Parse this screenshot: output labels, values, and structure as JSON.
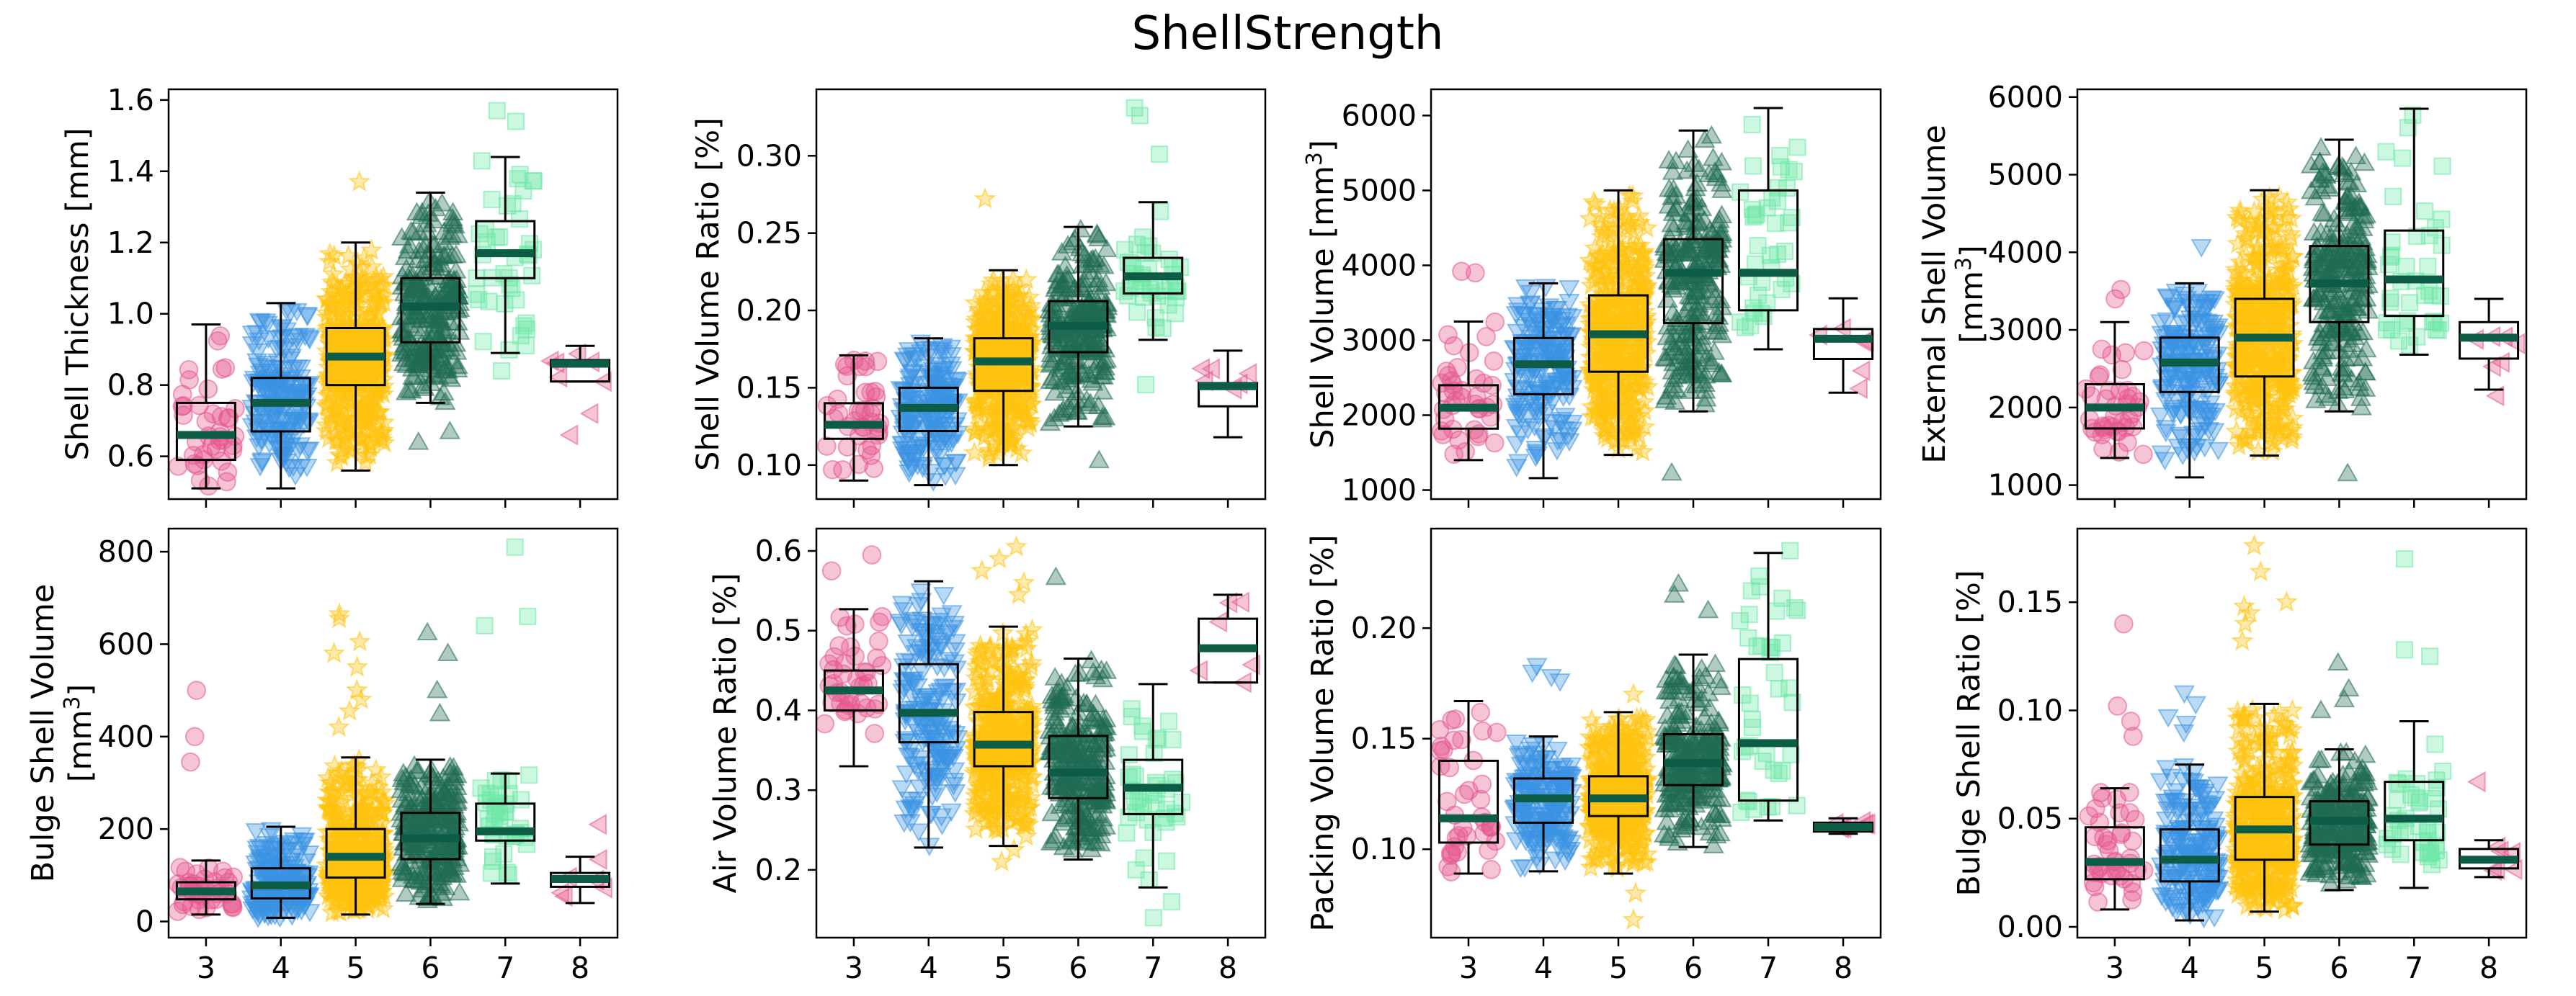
{
  "title": "ShellStrength",
  "categories": [
    "3",
    "4",
    "5",
    "6",
    "7",
    "8"
  ],
  "series_style": {
    "3": {
      "color": "#e6578c",
      "marker": "circle"
    },
    "4": {
      "color": "#3a93e3",
      "marker": "triangle-down"
    },
    "5": {
      "color": "#ffc20e",
      "marker": "star"
    },
    "6": {
      "color": "#1f6b53",
      "marker": "triangle-up"
    },
    "7": {
      "color": "#6ee7a6",
      "marker": "square"
    },
    "8": {
      "color": "#e6578c",
      "marker": "triangle-left"
    }
  },
  "median_color": "#0d5c45",
  "chart_data": [
    {
      "type": "box",
      "ylabel": "Shell Thickness [mm]",
      "ylim": [
        0.48,
        1.63
      ],
      "yticks": [
        "0.6",
        "0.8",
        "1.0",
        "1.2",
        "1.4",
        "1.6"
      ],
      "ytick_values": [
        0.6,
        0.8,
        1.0,
        1.2,
        1.4,
        1.6
      ],
      "boxes": [
        {
          "category": "3",
          "whislo": 0.51,
          "q1": 0.59,
          "med": 0.66,
          "q3": 0.75,
          "whishi": 0.97,
          "n": 40
        },
        {
          "category": "4",
          "whislo": 0.51,
          "q1": 0.67,
          "med": 0.75,
          "q3": 0.82,
          "whishi": 1.03,
          "n": 180
        },
        {
          "category": "5",
          "whislo": 0.56,
          "q1": 0.8,
          "med": 0.88,
          "q3": 0.96,
          "whishi": 1.2,
          "n": 420
        },
        {
          "category": "6",
          "whislo": 0.75,
          "q1": 0.92,
          "med": 1.02,
          "q3": 1.1,
          "whishi": 1.34,
          "n": 250
        },
        {
          "category": "7",
          "whislo": 0.89,
          "q1": 1.1,
          "med": 1.17,
          "q3": 1.26,
          "whishi": 1.44,
          "n": 40
        },
        {
          "category": "8",
          "whislo": 0.81,
          "q1": 0.81,
          "med": 0.86,
          "q3": 0.87,
          "whishi": 0.91,
          "n": 6
        }
      ],
      "outliers": [
        {
          "category": "5",
          "values": [
            1.37
          ]
        },
        {
          "category": "6",
          "values": [
            0.64,
            0.67
          ]
        },
        {
          "category": "7",
          "values": [
            1.54,
            1.57,
            0.84
          ]
        },
        {
          "category": "8",
          "values": [
            0.72,
            0.66
          ]
        }
      ]
    },
    {
      "type": "box",
      "ylabel": "Shell Volume Ratio [%]",
      "ylim": [
        0.078,
        0.343
      ],
      "yticks": [
        "0.10",
        "0.15",
        "0.20",
        "0.25",
        "0.30"
      ],
      "ytick_values": [
        0.1,
        0.15,
        0.2,
        0.25,
        0.3
      ],
      "boxes": [
        {
          "category": "3",
          "whislo": 0.09,
          "q1": 0.117,
          "med": 0.126,
          "q3": 0.14,
          "whishi": 0.171,
          "n": 40
        },
        {
          "category": "4",
          "whislo": 0.087,
          "q1": 0.122,
          "med": 0.137,
          "q3": 0.15,
          "whishi": 0.182,
          "n": 180
        },
        {
          "category": "5",
          "whislo": 0.1,
          "q1": 0.148,
          "med": 0.167,
          "q3": 0.182,
          "whishi": 0.226,
          "n": 420
        },
        {
          "category": "6",
          "whislo": 0.125,
          "q1": 0.173,
          "med": 0.19,
          "q3": 0.206,
          "whishi": 0.254,
          "n": 250
        },
        {
          "category": "7",
          "whislo": 0.181,
          "q1": 0.211,
          "med": 0.222,
          "q3": 0.234,
          "whishi": 0.27,
          "n": 40
        },
        {
          "category": "8",
          "whislo": 0.118,
          "q1": 0.138,
          "med": 0.151,
          "q3": 0.153,
          "whishi": 0.174,
          "n": 6
        }
      ],
      "outliers": [
        {
          "category": "5",
          "values": [
            0.272
          ]
        },
        {
          "category": "6",
          "values": [
            0.103
          ]
        },
        {
          "category": "7",
          "values": [
            0.326,
            0.331,
            0.301,
            0.152
          ]
        },
        {
          "category": "8",
          "values": []
        }
      ]
    },
    {
      "type": "box",
      "ylabel": "Shell Volume [mm³]",
      "ylabel_base": "Shell Volume [mm",
      "ylabel_sup": "3",
      "ylabel_end": "]",
      "ylim": [
        880,
        6350
      ],
      "yticks": [
        "1000",
        "2000",
        "3000",
        "4000",
        "5000",
        "6000"
      ],
      "ytick_values": [
        1000,
        2000,
        3000,
        4000,
        5000,
        6000
      ],
      "boxes": [
        {
          "category": "3",
          "whislo": 1400,
          "q1": 1820,
          "med": 2100,
          "q3": 2400,
          "whishi": 3250,
          "n": 40
        },
        {
          "category": "4",
          "whislo": 1160,
          "q1": 2280,
          "med": 2680,
          "q3": 3030,
          "whishi": 3760,
          "n": 180
        },
        {
          "category": "5",
          "whislo": 1470,
          "q1": 2580,
          "med": 3080,
          "q3": 3600,
          "whishi": 5000,
          "n": 420
        },
        {
          "category": "6",
          "whislo": 2050,
          "q1": 3230,
          "med": 3900,
          "q3": 4350,
          "whishi": 5800,
          "n": 250
        },
        {
          "category": "7",
          "whislo": 2880,
          "q1": 3400,
          "med": 3900,
          "q3": 5000,
          "whishi": 6100,
          "n": 40
        },
        {
          "category": "8",
          "whislo": 2300,
          "q1": 2750,
          "med": 3020,
          "q3": 3150,
          "whishi": 3560,
          "n": 6
        }
      ],
      "outliers": [
        {
          "category": "3",
          "values": [
            3920,
            3900
          ]
        },
        {
          "category": "6",
          "values": [
            1230
          ]
        },
        {
          "category": "7",
          "values": []
        },
        {
          "category": "8",
          "values": []
        }
      ]
    },
    {
      "type": "box",
      "ylabel": "External Shell Volume [mm³]",
      "ylabel_line1": "External Shell Volume",
      "ylabel_line2_base": "[mm",
      "ylabel_line2_sup": "3",
      "ylabel_line2_end": "]",
      "ylim": [
        820,
        6100
      ],
      "yticks": [
        "1000",
        "2000",
        "3000",
        "4000",
        "5000",
        "6000"
      ],
      "ytick_values": [
        1000,
        2000,
        3000,
        4000,
        5000,
        6000
      ],
      "boxes": [
        {
          "category": "3",
          "whislo": 1350,
          "q1": 1730,
          "med": 2000,
          "q3": 2300,
          "whishi": 3100,
          "n": 40
        },
        {
          "category": "4",
          "whislo": 1100,
          "q1": 2200,
          "med": 2580,
          "q3": 2900,
          "whishi": 3600,
          "n": 180
        },
        {
          "category": "5",
          "whislo": 1380,
          "q1": 2400,
          "med": 2900,
          "q3": 3400,
          "whishi": 4800,
          "n": 420
        },
        {
          "category": "6",
          "whislo": 1950,
          "q1": 3100,
          "med": 3600,
          "q3": 4080,
          "whishi": 5450,
          "n": 250
        },
        {
          "category": "7",
          "whislo": 2680,
          "q1": 3180,
          "med": 3650,
          "q3": 4280,
          "whishi": 5850,
          "n": 40
        },
        {
          "category": "8",
          "whislo": 2230,
          "q1": 2630,
          "med": 2900,
          "q3": 3100,
          "whishi": 3400,
          "n": 6
        }
      ],
      "outliers": [
        {
          "category": "3",
          "values": [
            3520,
            3400
          ]
        },
        {
          "category": "4",
          "values": [
            4070
          ]
        },
        {
          "category": "6",
          "values": [
            1150
          ]
        },
        {
          "category": "8",
          "values": [
            2150
          ]
        }
      ]
    },
    {
      "type": "box",
      "ylabel": "Bulge Shell Volume [mm³]",
      "ylabel_line1": "Bulge Shell Volume",
      "ylabel_line2_base": "[mm",
      "ylabel_line2_sup": "3",
      "ylabel_line2_end": "]",
      "ylim": [
        -35,
        850
      ],
      "yticks": [
        "0",
        "200",
        "400",
        "600",
        "800"
      ],
      "ytick_values": [
        0,
        200,
        400,
        600,
        800
      ],
      "boxes": [
        {
          "category": "3",
          "whislo": 15,
          "q1": 48,
          "med": 65,
          "q3": 85,
          "whishi": 132,
          "n": 40
        },
        {
          "category": "4",
          "whislo": 8,
          "q1": 50,
          "med": 78,
          "q3": 115,
          "whishi": 205,
          "n": 180
        },
        {
          "category": "5",
          "whislo": 15,
          "q1": 95,
          "med": 140,
          "q3": 200,
          "whishi": 355,
          "n": 420
        },
        {
          "category": "6",
          "whislo": 38,
          "q1": 135,
          "med": 180,
          "q3": 235,
          "whishi": 350,
          "n": 250
        },
        {
          "category": "7",
          "whislo": 82,
          "q1": 175,
          "med": 195,
          "q3": 255,
          "whishi": 320,
          "n": 40
        },
        {
          "category": "8",
          "whislo": 40,
          "q1": 75,
          "med": 92,
          "q3": 105,
          "whishi": 140,
          "n": 6
        }
      ],
      "outliers": [
        {
          "category": "3",
          "values": [
            500,
            400,
            345
          ]
        },
        {
          "category": "5",
          "values": [
            665,
            655,
            605,
            580,
            550,
            500,
            480,
            455,
            420
          ]
        },
        {
          "category": "6",
          "values": [
            625,
            580,
            500,
            450
          ]
        },
        {
          "category": "7",
          "values": [
            810,
            660,
            640
          ]
        },
        {
          "category": "8",
          "values": [
            210
          ]
        }
      ]
    },
    {
      "type": "box",
      "ylabel": "Air Volume Ratio [%]",
      "ylim": [
        0.115,
        0.628
      ],
      "yticks": [
        "0.2",
        "0.3",
        "0.4",
        "0.5",
        "0.6"
      ],
      "ytick_values": [
        0.2,
        0.3,
        0.4,
        0.5,
        0.6
      ],
      "boxes": [
        {
          "category": "3",
          "whislo": 0.33,
          "q1": 0.4,
          "med": 0.425,
          "q3": 0.45,
          "whishi": 0.527,
          "n": 40
        },
        {
          "category": "4",
          "whislo": 0.228,
          "q1": 0.36,
          "med": 0.397,
          "q3": 0.458,
          "whishi": 0.562,
          "n": 180
        },
        {
          "category": "5",
          "whislo": 0.23,
          "q1": 0.33,
          "med": 0.357,
          "q3": 0.398,
          "whishi": 0.505,
          "n": 420
        },
        {
          "category": "6",
          "whislo": 0.213,
          "q1": 0.29,
          "med": 0.322,
          "q3": 0.368,
          "whishi": 0.465,
          "n": 250
        },
        {
          "category": "7",
          "whislo": 0.178,
          "q1": 0.27,
          "med": 0.303,
          "q3": 0.338,
          "whishi": 0.433,
          "n": 40
        },
        {
          "category": "8",
          "whislo": 0.435,
          "q1": 0.435,
          "med": 0.478,
          "q3": 0.515,
          "whishi": 0.545,
          "n": 6
        }
      ],
      "outliers": [
        {
          "category": "3",
          "values": [
            0.595,
            0.575
          ]
        },
        {
          "category": "5",
          "values": [
            0.605,
            0.59,
            0.575,
            0.56,
            0.545,
            0.21,
            0.225
          ]
        },
        {
          "category": "6",
          "values": [
            0.567
          ]
        },
        {
          "category": "7",
          "values": [
            0.16,
            0.14,
            0.2
          ]
        }
      ]
    },
    {
      "type": "box",
      "ylabel": "Packing Volume Ratio [%]",
      "ylim": [
        0.06,
        0.245
      ],
      "yticks": [
        "0.10",
        "0.15",
        "0.20"
      ],
      "ytick_values": [
        0.1,
        0.15,
        0.2
      ],
      "boxes": [
        {
          "category": "3",
          "whislo": 0.089,
          "q1": 0.103,
          "med": 0.114,
          "q3": 0.14,
          "whishi": 0.167,
          "n": 40
        },
        {
          "category": "4",
          "whislo": 0.09,
          "q1": 0.112,
          "med": 0.123,
          "q3": 0.132,
          "whishi": 0.151,
          "n": 180
        },
        {
          "category": "5",
          "whislo": 0.089,
          "q1": 0.115,
          "med": 0.123,
          "q3": 0.133,
          "whishi": 0.162,
          "n": 420
        },
        {
          "category": "6",
          "whislo": 0.101,
          "q1": 0.129,
          "med": 0.139,
          "q3": 0.152,
          "whishi": 0.188,
          "n": 250
        },
        {
          "category": "7",
          "whislo": 0.113,
          "q1": 0.122,
          "med": 0.148,
          "q3": 0.186,
          "whishi": 0.234,
          "n": 40
        },
        {
          "category": "8",
          "whislo": 0.107,
          "q1": 0.108,
          "med": 0.11,
          "q3": 0.112,
          "whishi": 0.114,
          "n": 6
        }
      ],
      "outliers": [
        {
          "category": "4",
          "values": [
            0.183,
            0.18,
            0.178,
            0.176
          ]
        },
        {
          "category": "5",
          "values": [
            0.068,
            0.08,
            0.17
          ]
        },
        {
          "category": "6",
          "values": [
            0.22,
            0.215,
            0.208
          ]
        },
        {
          "category": "7",
          "values": [
            0.235
          ]
        }
      ]
    },
    {
      "type": "box",
      "ylabel": "Bulge Shell Ratio [%]",
      "ylim": [
        -0.005,
        0.184
      ],
      "yticks": [
        "0.00",
        "0.05",
        "0.10",
        "0.15"
      ],
      "ytick_values": [
        0.0,
        0.05,
        0.1,
        0.15
      ],
      "boxes": [
        {
          "category": "3",
          "whislo": 0.008,
          "q1": 0.022,
          "med": 0.03,
          "q3": 0.046,
          "whishi": 0.064,
          "n": 40
        },
        {
          "category": "4",
          "whislo": 0.003,
          "q1": 0.021,
          "med": 0.031,
          "q3": 0.045,
          "whishi": 0.075,
          "n": 180
        },
        {
          "category": "5",
          "whislo": 0.007,
          "q1": 0.031,
          "med": 0.045,
          "q3": 0.06,
          "whishi": 0.103,
          "n": 420
        },
        {
          "category": "6",
          "whislo": 0.017,
          "q1": 0.038,
          "med": 0.049,
          "q3": 0.058,
          "whishi": 0.082,
          "n": 250
        },
        {
          "category": "7",
          "whislo": 0.018,
          "q1": 0.04,
          "med": 0.05,
          "q3": 0.067,
          "whishi": 0.095,
          "n": 40
        },
        {
          "category": "8",
          "whislo": 0.023,
          "q1": 0.027,
          "med": 0.031,
          "q3": 0.036,
          "whishi": 0.04,
          "n": 6
        }
      ],
      "outliers": [
        {
          "category": "3",
          "values": [
            0.14,
            0.102,
            0.095,
            0.088
          ]
        },
        {
          "category": "4",
          "values": [
            0.108,
            0.103,
            0.097,
            0.094,
            0.09
          ]
        },
        {
          "category": "5",
          "values": [
            0.176,
            0.164,
            0.15,
            0.148,
            0.145,
            0.14,
            0.132
          ]
        },
        {
          "category": "6",
          "values": [
            0.122,
            0.11,
            0.105,
            0.1
          ]
        },
        {
          "category": "7",
          "values": [
            0.17,
            0.128,
            0.125
          ]
        },
        {
          "category": "8",
          "values": [
            0.067
          ]
        }
      ]
    }
  ]
}
